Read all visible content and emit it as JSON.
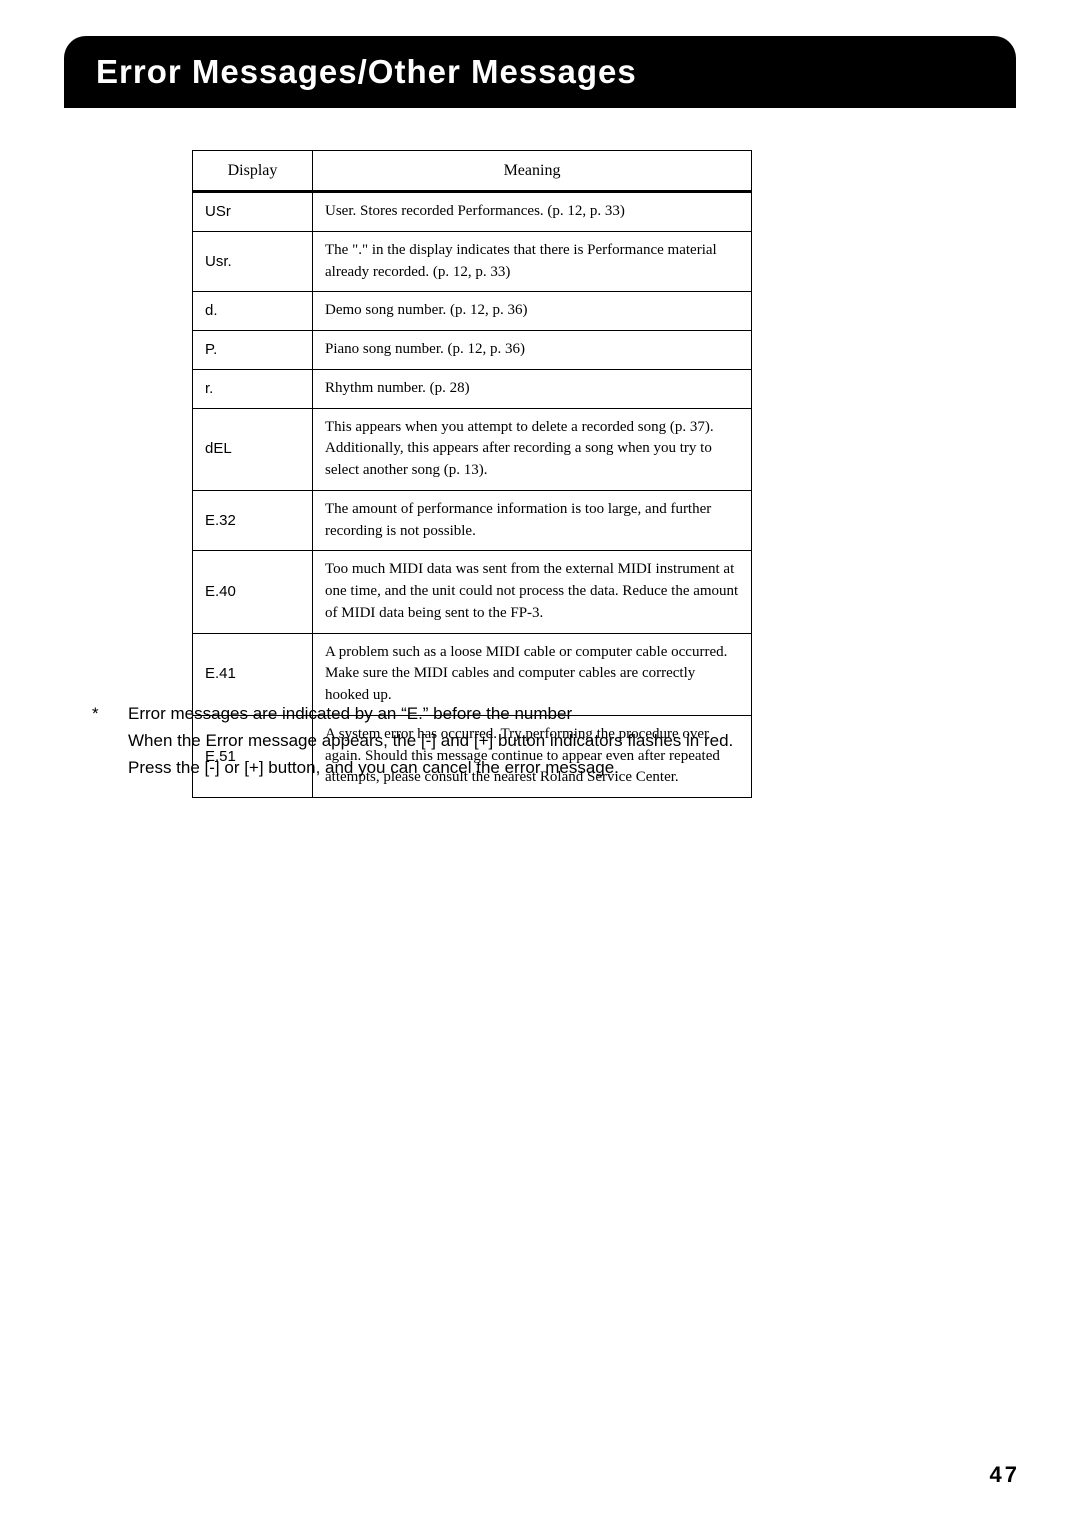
{
  "header": {
    "title": "Error Messages/Other Messages"
  },
  "table": {
    "headers": {
      "display": "Display",
      "meaning": "Meaning"
    },
    "rows": [
      {
        "display": "USr",
        "meaning": "User. Stores recorded Performances. (p. 12, p. 33)"
      },
      {
        "display": "Usr.",
        "meaning": "The \".\" in the display indicates that there is Performance material already recorded. (p. 12, p. 33)"
      },
      {
        "display": "d.",
        "meaning": "Demo song number. (p. 12, p. 36)"
      },
      {
        "display": "P.",
        "meaning": "Piano song number. (p. 12, p. 36)"
      },
      {
        "display": "r.",
        "meaning": "Rhythm number. (p. 28)"
      },
      {
        "display": "dEL",
        "meaning": "This appears when you attempt to delete a recorded song (p. 37). Additionally, this appears after recording a song when you try to select another song (p. 13)."
      },
      {
        "display": "E.32",
        "meaning": "The amount of performance information is too large, and further recording is not possible."
      },
      {
        "display": "E.40",
        "meaning": "Too much MIDI data was sent from the external MIDI instrument at one time, and the unit could not process the data. Reduce the amount of MIDI data being sent to the FP-3."
      },
      {
        "display": "E.41",
        "meaning": "A problem such as a loose MIDI cable or computer cable occurred. Make sure the MIDI cables and computer cables are correctly hooked up."
      },
      {
        "display": "E.51",
        "meaning": "A system error has occurred. Try performing the procedure over again. Should this message continue to appear even after repeated attempts, please consult the nearest Roland Service Center."
      }
    ]
  },
  "footnote": {
    "line1": "Error messages are indicated by an “E.” before the number",
    "line2": "When the Error message appears, the [-] and [+] button indicators flashes in red.",
    "line3": "Press the [-] or [+] button, and you can cancel the error message."
  },
  "page_number": "47"
}
